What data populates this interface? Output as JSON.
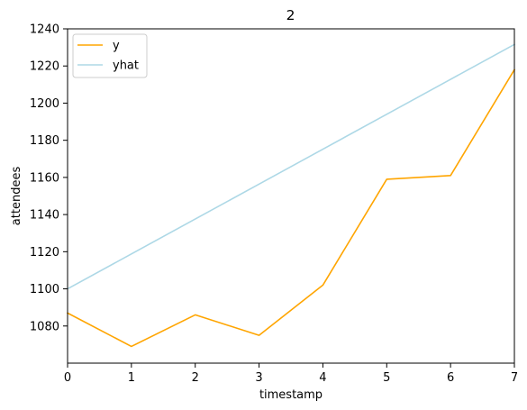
{
  "chart_data": {
    "type": "line",
    "title": "2",
    "xlabel": "timestamp",
    "ylabel": "attendees",
    "x": [
      0,
      1,
      2,
      3,
      4,
      5,
      6,
      7
    ],
    "xlim": [
      0,
      7
    ],
    "ylim": [
      1060,
      1240
    ],
    "xticks": [
      "0",
      "1",
      "2",
      "3",
      "4",
      "5",
      "6",
      "7"
    ],
    "yticks": [
      "1080",
      "1100",
      "1120",
      "1140",
      "1160",
      "1180",
      "1200",
      "1220",
      "1240"
    ],
    "grid": false,
    "legend_position": "upper-left",
    "series": [
      {
        "name": "y",
        "color": "#ffa500",
        "values": [
          1087,
          1069,
          1086,
          1075,
          1102,
          1159,
          1161,
          1218
        ]
      },
      {
        "name": "yhat",
        "color": "#add8e6",
        "values": [
          1100,
          1118.8,
          1137.6,
          1156.4,
          1175.2,
          1194,
          1212.8,
          1231.6
        ]
      }
    ]
  }
}
